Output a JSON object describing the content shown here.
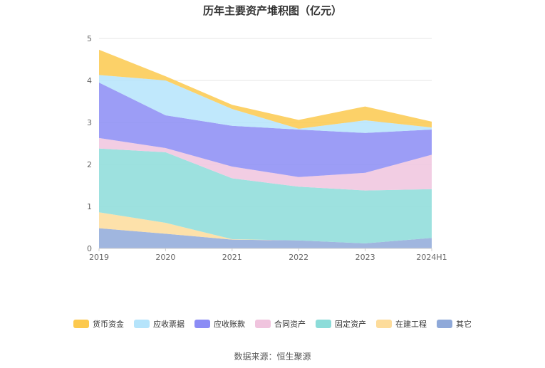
{
  "chart_data": {
    "type": "area",
    "stacked": true,
    "title": "历年主要资产堆积图（亿元）",
    "categories": [
      "2019",
      "2020",
      "2021",
      "2022",
      "2023",
      "2024H1"
    ],
    "ylim": [
      0,
      5
    ],
    "yticks": [
      0,
      1,
      2,
      3,
      4,
      5
    ],
    "grid": true,
    "legend_position": "bottom",
    "series": [
      {
        "name": "其它",
        "color": "#8fa9d9",
        "values": [
          0.48,
          0.35,
          0.21,
          0.19,
          0.12,
          0.25
        ]
      },
      {
        "name": "在建工程",
        "color": "#fddc9b",
        "values": [
          0.38,
          0.26,
          0.01,
          0.0,
          0.0,
          0.0
        ]
      },
      {
        "name": "固定资产",
        "color": "#8cdcd9",
        "values": [
          1.52,
          1.68,
          1.45,
          1.28,
          1.26,
          1.16
        ]
      },
      {
        "name": "合同资产",
        "color": "#f0c4de",
        "values": [
          0.25,
          0.1,
          0.28,
          0.23,
          0.42,
          0.82
        ]
      },
      {
        "name": "应收账款",
        "color": "#8b8cf5",
        "values": [
          1.32,
          0.78,
          0.97,
          1.13,
          0.95,
          0.6
        ]
      },
      {
        "name": "应收票据",
        "color": "#b5e4fb",
        "values": [
          0.18,
          0.83,
          0.4,
          0.02,
          0.3,
          0.05
        ]
      },
      {
        "name": "货币资金",
        "color": "#fcc94e",
        "values": [
          0.6,
          0.1,
          0.1,
          0.21,
          0.33,
          0.14
        ]
      }
    ],
    "legend_order": [
      "货币资金",
      "应收票据",
      "应收账款",
      "合同资产",
      "固定资产",
      "在建工程",
      "其它"
    ]
  },
  "source_text": "数据来源：恒生聚源"
}
